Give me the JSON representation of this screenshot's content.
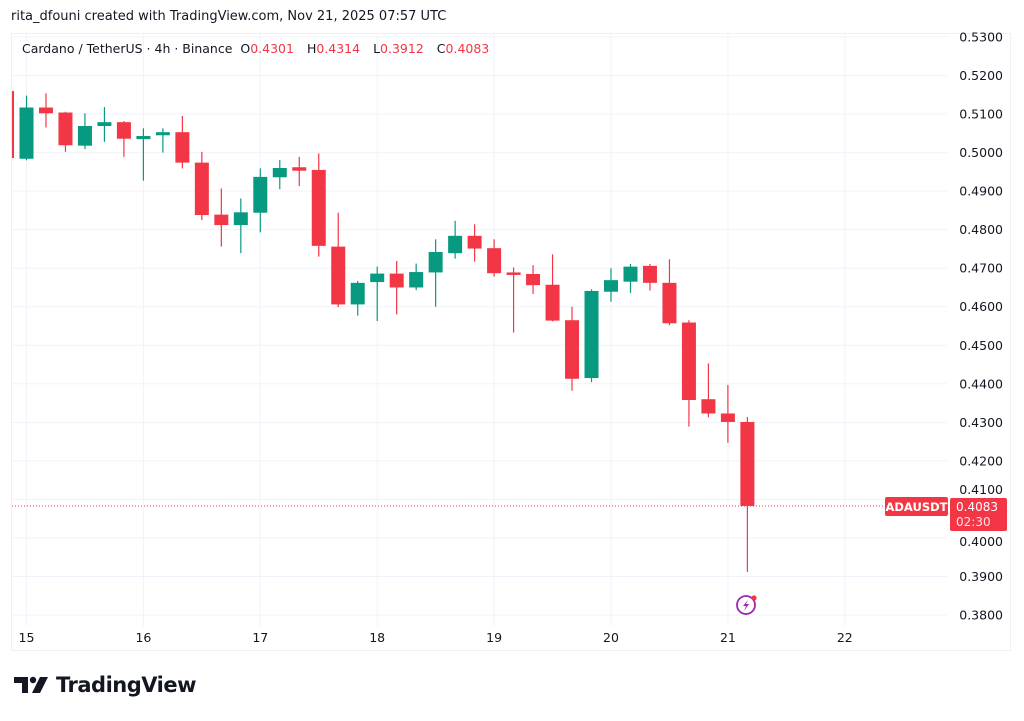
{
  "attribution": "rita_dfouni created with TradingView.com, Nov 21, 2025 07:57 UTC",
  "legend": {
    "symbol_desc": "Cardano / TetherUS · 4h · Binance",
    "o_label": "O",
    "o": "0.4301",
    "h_label": "H",
    "h": "0.4314",
    "l_label": "L",
    "l": "0.3912",
    "c_label": "C",
    "c": "0.4083"
  },
  "price_tag": {
    "symbol": "ADAUSDT",
    "price": "0.4083",
    "countdown": "02:30"
  },
  "logo": {
    "text": "TradingView"
  },
  "colors": {
    "up": "#089981",
    "down": "#f23645",
    "grid": "#f0f3fa",
    "alert_icon": "#9c27b0"
  },
  "icons": {
    "alert": "lightning-alert-icon",
    "logo": "tradingview-logo-icon"
  },
  "chart_data": {
    "type": "candlestick",
    "title": "Cardano / TetherUS · 4h · Binance",
    "interval": "4h",
    "ylim": [
      0.38,
      0.53
    ],
    "grid": true,
    "y_ticks": [
      "0.5300",
      "0.5200",
      "0.5100",
      "0.5000",
      "0.4900",
      "0.4800",
      "0.4700",
      "0.4600",
      "0.4500",
      "0.4400",
      "0.4300",
      "0.4200",
      "0.4100",
      "0.4000",
      "0.3900",
      "0.3800"
    ],
    "x_ticks": [
      "15",
      "16",
      "17",
      "18",
      "19",
      "20",
      "21",
      "22"
    ],
    "last_price": 0.4083,
    "candles": [
      {
        "t": "Nov 14 20:00",
        "o": 0.516,
        "h": 0.516,
        "l": 0.4986,
        "c": 0.4986
      },
      {
        "t": "Nov 15 00:00",
        "o": 0.4984,
        "h": 0.5148,
        "l": 0.498,
        "c": 0.5117
      },
      {
        "t": "Nov 15 04:00",
        "o": 0.5117,
        "h": 0.5154,
        "l": 0.5065,
        "c": 0.5102
      },
      {
        "t": "Nov 15 08:00",
        "o": 0.5104,
        "h": 0.5106,
        "l": 0.5002,
        "c": 0.5019
      },
      {
        "t": "Nov 15 12:00",
        "o": 0.5018,
        "h": 0.5102,
        "l": 0.5009,
        "c": 0.5069
      },
      {
        "t": "Nov 15 16:00",
        "o": 0.5069,
        "h": 0.5118,
        "l": 0.5028,
        "c": 0.5079
      },
      {
        "t": "Nov 15 20:00",
        "o": 0.5079,
        "h": 0.5082,
        "l": 0.4989,
        "c": 0.5036
      },
      {
        "t": "Nov 16 00:00",
        "o": 0.5035,
        "h": 0.5063,
        "l": 0.4927,
        "c": 0.5043
      },
      {
        "t": "Nov 16 04:00",
        "o": 0.5045,
        "h": 0.5063,
        "l": 0.5,
        "c": 0.5053
      },
      {
        "t": "Nov 16 08:00",
        "o": 0.5053,
        "h": 0.5095,
        "l": 0.4959,
        "c": 0.4974
      },
      {
        "t": "Nov 16 12:00",
        "o": 0.4974,
        "h": 0.5002,
        "l": 0.4825,
        "c": 0.4838
      },
      {
        "t": "Nov 16 16:00",
        "o": 0.4839,
        "h": 0.4907,
        "l": 0.4756,
        "c": 0.4812
      },
      {
        "t": "Nov 16 20:00",
        "o": 0.4812,
        "h": 0.4881,
        "l": 0.4739,
        "c": 0.4845
      },
      {
        "t": "Nov 17 00:00",
        "o": 0.4844,
        "h": 0.4959,
        "l": 0.4793,
        "c": 0.4937
      },
      {
        "t": "Nov 17 04:00",
        "o": 0.4936,
        "h": 0.4981,
        "l": 0.4905,
        "c": 0.496
      },
      {
        "t": "Nov 17 08:00",
        "o": 0.4962,
        "h": 0.4989,
        "l": 0.4913,
        "c": 0.4953
      },
      {
        "t": "Nov 17 12:00",
        "o": 0.4955,
        "h": 0.4998,
        "l": 0.473,
        "c": 0.4758
      },
      {
        "t": "Nov 17 16:00",
        "o": 0.4756,
        "h": 0.4844,
        "l": 0.4599,
        "c": 0.4606
      },
      {
        "t": "Nov 17 20:00",
        "o": 0.4606,
        "h": 0.4667,
        "l": 0.4577,
        "c": 0.4662
      },
      {
        "t": "Nov 18 00:00",
        "o": 0.4664,
        "h": 0.4704,
        "l": 0.4563,
        "c": 0.4686
      },
      {
        "t": "Nov 18 04:00",
        "o": 0.4686,
        "h": 0.4719,
        "l": 0.458,
        "c": 0.465
      },
      {
        "t": "Nov 18 08:00",
        "o": 0.465,
        "h": 0.4712,
        "l": 0.4643,
        "c": 0.469
      },
      {
        "t": "Nov 18 12:00",
        "o": 0.4689,
        "h": 0.4775,
        "l": 0.46,
        "c": 0.4742
      },
      {
        "t": "Nov 18 16:00",
        "o": 0.4739,
        "h": 0.4823,
        "l": 0.4725,
        "c": 0.4784
      },
      {
        "t": "Nov 18 20:00",
        "o": 0.4784,
        "h": 0.4814,
        "l": 0.4717,
        "c": 0.4751
      },
      {
        "t": "Nov 19 00:00",
        "o": 0.4752,
        "h": 0.4775,
        "l": 0.4678,
        "c": 0.4687
      },
      {
        "t": "Nov 19 04:00",
        "o": 0.4689,
        "h": 0.4702,
        "l": 0.4533,
        "c": 0.4683
      },
      {
        "t": "Nov 19 08:00",
        "o": 0.4685,
        "h": 0.4708,
        "l": 0.4633,
        "c": 0.4656
      },
      {
        "t": "Nov 19 12:00",
        "o": 0.4657,
        "h": 0.4736,
        "l": 0.4562,
        "c": 0.4564
      },
      {
        "t": "Nov 19 16:00",
        "o": 0.4565,
        "h": 0.46,
        "l": 0.4382,
        "c": 0.4413
      },
      {
        "t": "Nov 19 20:00",
        "o": 0.4415,
        "h": 0.4645,
        "l": 0.4404,
        "c": 0.4641
      },
      {
        "t": "Nov 20 00:00",
        "o": 0.4639,
        "h": 0.47,
        "l": 0.4613,
        "c": 0.4669
      },
      {
        "t": "Nov 20 04:00",
        "o": 0.4665,
        "h": 0.4711,
        "l": 0.4636,
        "c": 0.4704
      },
      {
        "t": "Nov 20 08:00",
        "o": 0.4706,
        "h": 0.4711,
        "l": 0.4642,
        "c": 0.4662
      },
      {
        "t": "Nov 20 12:00",
        "o": 0.4662,
        "h": 0.4723,
        "l": 0.4552,
        "c": 0.4557
      },
      {
        "t": "Nov 20 16:00",
        "o": 0.4559,
        "h": 0.4565,
        "l": 0.4289,
        "c": 0.4358
      },
      {
        "t": "Nov 20 20:00",
        "o": 0.436,
        "h": 0.4453,
        "l": 0.4313,
        "c": 0.4323
      },
      {
        "t": "Nov 21 00:00",
        "o": 0.4323,
        "h": 0.4397,
        "l": 0.4247,
        "c": 0.4301
      },
      {
        "t": "Nov 21 04:00",
        "o": 0.4301,
        "h": 0.4314,
        "l": 0.3912,
        "c": 0.4083
      }
    ]
  }
}
